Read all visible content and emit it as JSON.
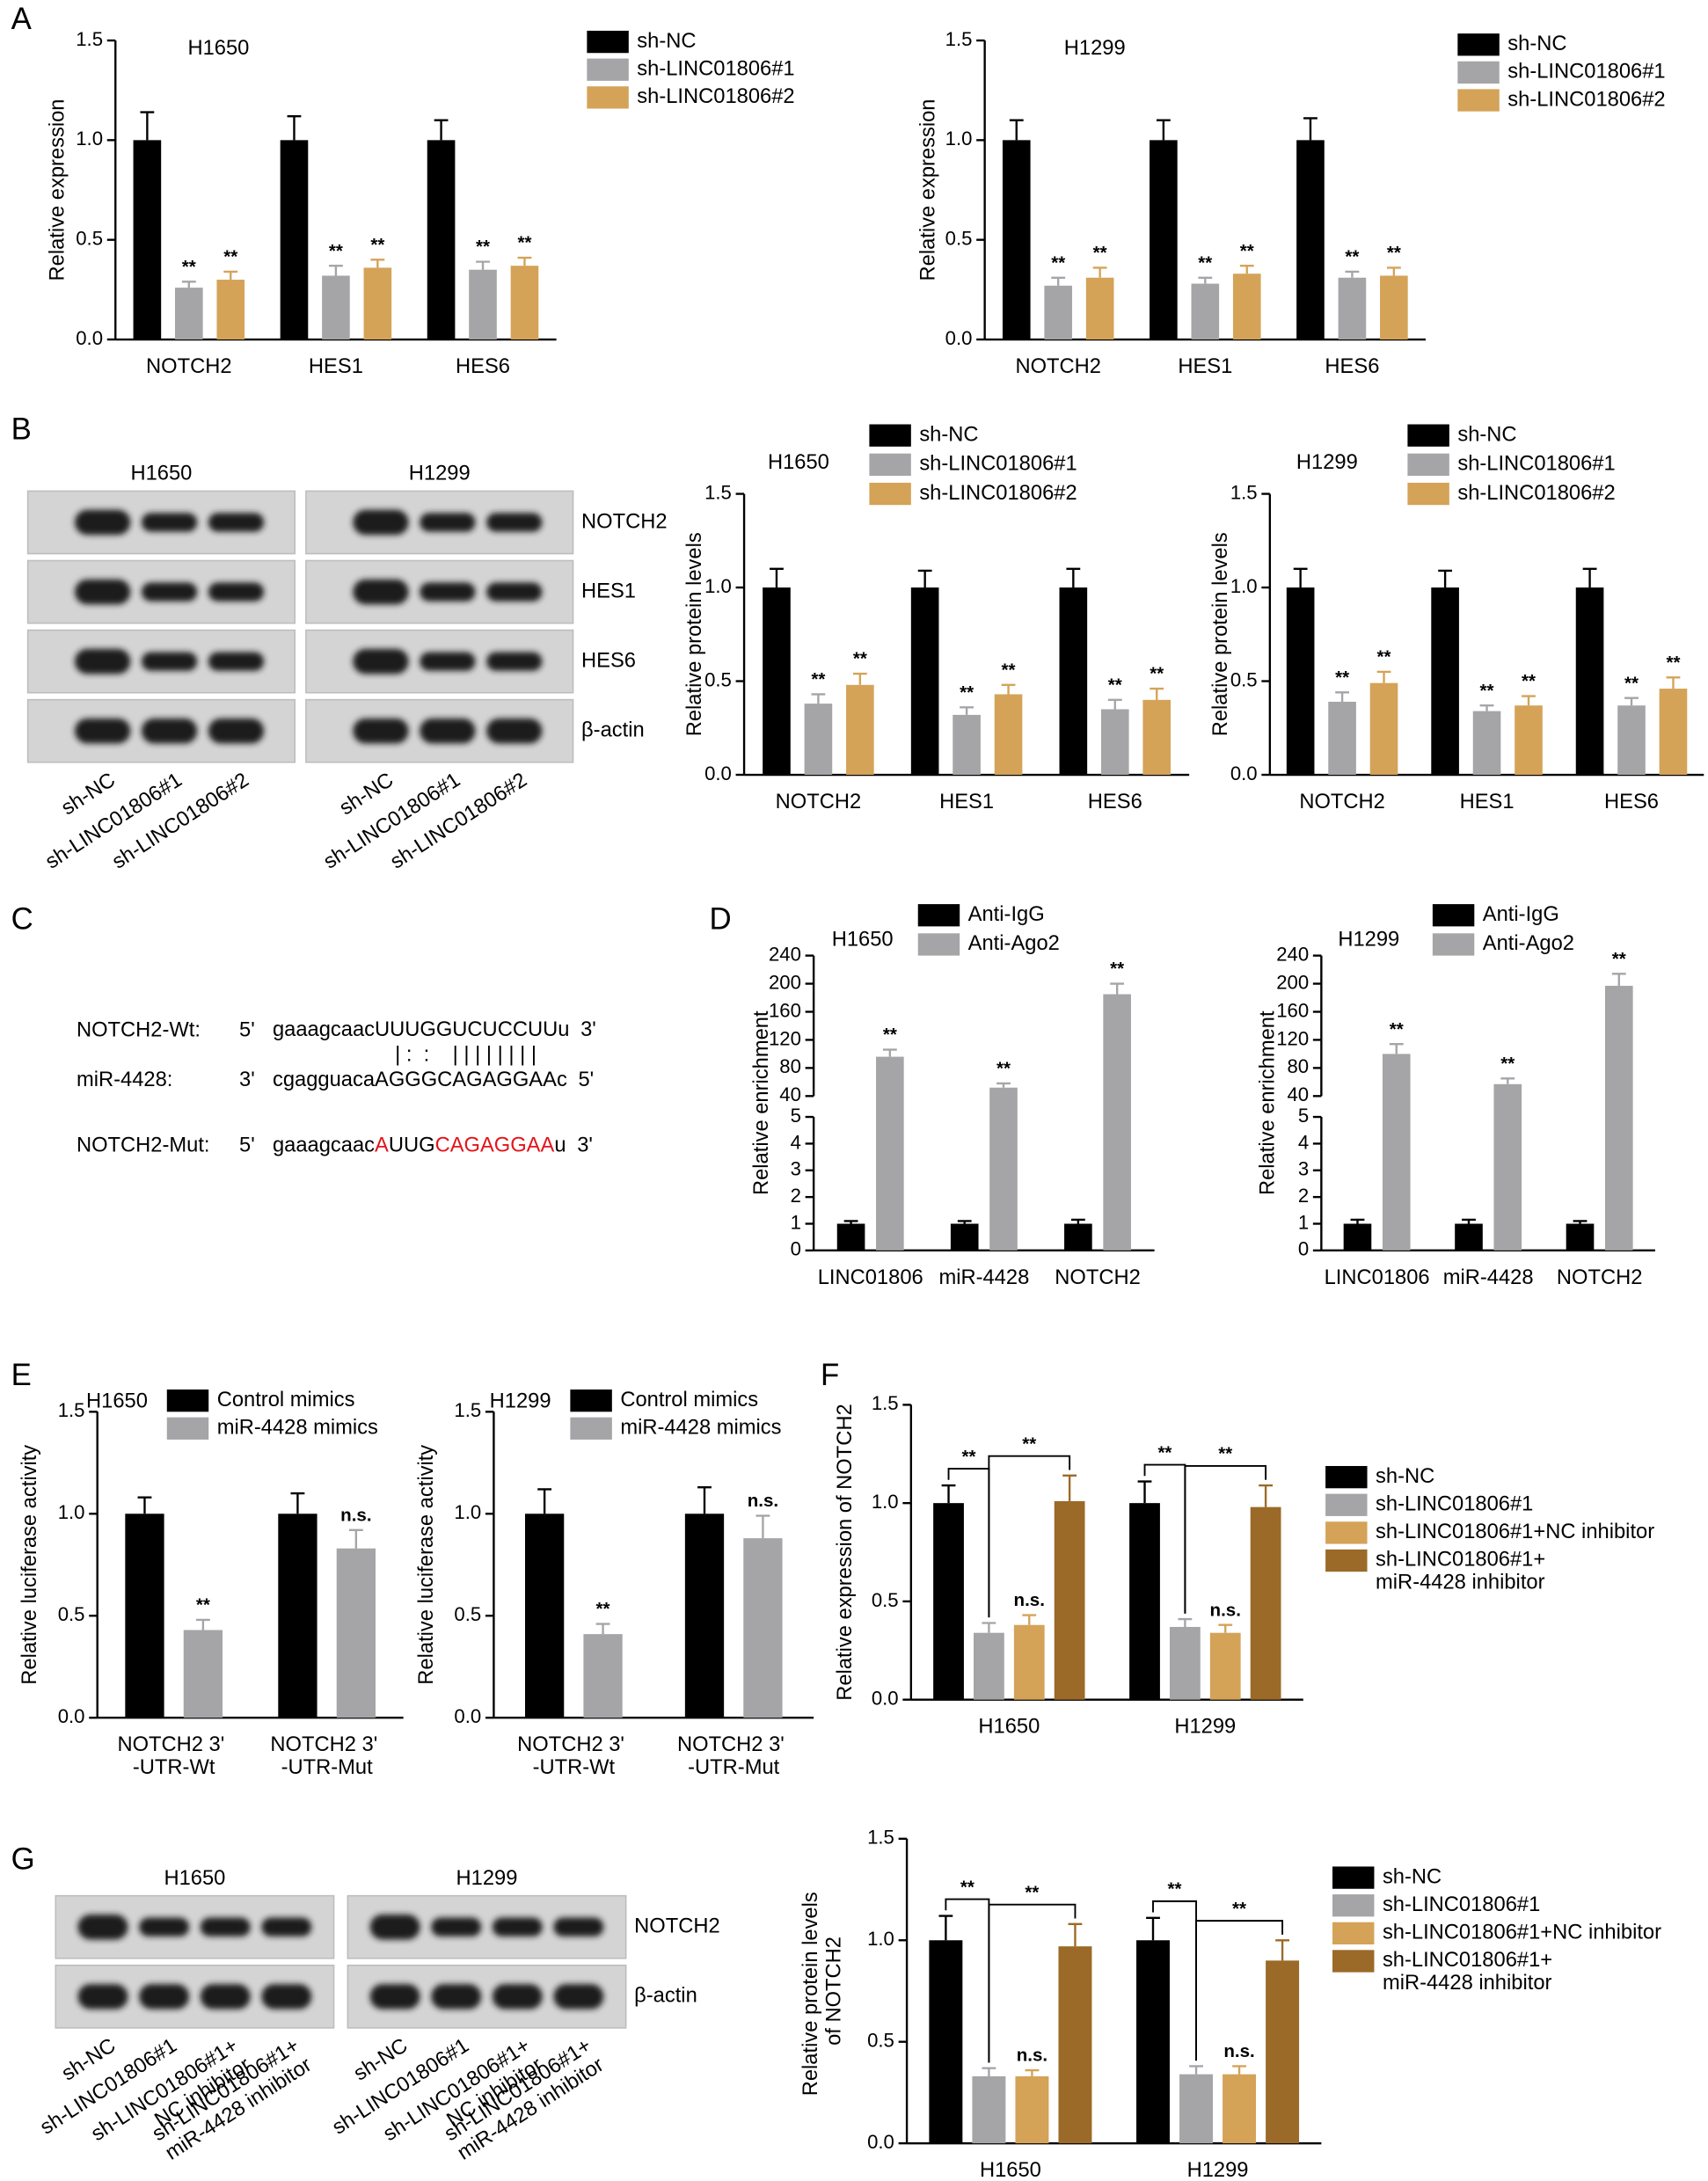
{
  "chart_data": [
    {
      "type": "bar",
      "title": "H1650",
      "ylabel": "Relative expression",
      "categories": [
        "NOTCH2",
        "HES1",
        "HES6"
      ],
      "series": [
        {
          "name": "sh-NC",
          "color": "#000000",
          "values": [
            1,
            1,
            1
          ],
          "errors": [
            0.14,
            0.12,
            0.1
          ]
        },
        {
          "name": "sh-LINC01806#1",
          "color": "#a5a5a8",
          "values": [
            0.26,
            0.32,
            0.35
          ],
          "errors": [
            0.03,
            0.05,
            0.04
          ],
          "annotations": [
            "**",
            "**",
            "**"
          ]
        },
        {
          "name": "sh-LINC01806#2",
          "color": "#d4a358",
          "values": [
            0.3,
            0.36,
            0.37
          ],
          "errors": [
            0.04,
            0.04,
            0.04
          ],
          "annotations": [
            "**",
            "**",
            "**"
          ]
        }
      ],
      "ylim": [
        0,
        1.5
      ],
      "yticks": [
        {
          "value": 0,
          "label": "0.0"
        },
        {
          "value": 0.5,
          "label": "0.5"
        },
        {
          "value": 1,
          "label": "1.0"
        },
        {
          "value": 1.5,
          "label": "1.5"
        }
      ]
    },
    {
      "type": "bar",
      "title": "H1299",
      "ylabel": "Relative expression",
      "categories": [
        "NOTCH2",
        "HES1",
        "HES6"
      ],
      "series": [
        {
          "name": "sh-NC",
          "color": "#000000",
          "values": [
            1,
            1,
            1
          ],
          "errors": [
            0.1,
            0.1,
            0.11
          ]
        },
        {
          "name": "sh-LINC01806#1",
          "color": "#a5a5a8",
          "values": [
            0.27,
            0.28,
            0.31
          ],
          "errors": [
            0.04,
            0.03,
            0.03
          ],
          "annotations": [
            "**",
            "**",
            "**"
          ]
        },
        {
          "name": "sh-LINC01806#2",
          "color": "#d4a358",
          "values": [
            0.31,
            0.33,
            0.32
          ],
          "errors": [
            0.05,
            0.04,
            0.04
          ],
          "annotations": [
            "**",
            "**",
            "**"
          ]
        }
      ],
      "ylim": [
        0,
        1.5
      ],
      "yticks": [
        {
          "value": 0,
          "label": "0.0"
        },
        {
          "value": 0.5,
          "label": "0.5"
        },
        {
          "value": 1,
          "label": "1.0"
        },
        {
          "value": 1.5,
          "label": "1.5"
        }
      ]
    },
    {
      "type": "bar",
      "title": "H1650",
      "ylabel": "Relative protein levels",
      "categories": [
        "NOTCH2",
        "HES1",
        "HES6"
      ],
      "series": [
        {
          "name": "sh-NC",
          "color": "#000000",
          "values": [
            1,
            1,
            1
          ],
          "errors": [
            0.1,
            0.09,
            0.1
          ]
        },
        {
          "name": "sh-LINC01806#1",
          "color": "#a5a5a8",
          "values": [
            0.38,
            0.32,
            0.35
          ],
          "errors": [
            0.05,
            0.04,
            0.05
          ],
          "annotations": [
            "**",
            "**",
            "**"
          ]
        },
        {
          "name": "sh-LINC01806#2",
          "color": "#d4a358",
          "values": [
            0.48,
            0.43,
            0.4
          ],
          "errors": [
            0.06,
            0.05,
            0.06
          ],
          "annotations": [
            "**",
            "**",
            "**"
          ]
        }
      ],
      "ylim": [
        0,
        1.5
      ],
      "yticks": [
        {
          "value": 0,
          "label": "0.0"
        },
        {
          "value": 0.5,
          "label": "0.5"
        },
        {
          "value": 1,
          "label": "1.0"
        },
        {
          "value": 1.5,
          "label": "1.5"
        }
      ]
    },
    {
      "type": "bar",
      "title": "H1299",
      "ylabel": "Relative protein levels",
      "categories": [
        "NOTCH2",
        "HES1",
        "HES6"
      ],
      "series": [
        {
          "name": "sh-NC",
          "color": "#000000",
          "values": [
            1,
            1,
            1
          ],
          "errors": [
            0.1,
            0.09,
            0.1
          ]
        },
        {
          "name": "sh-LINC01806#1",
          "color": "#a5a5a8",
          "values": [
            0.39,
            0.34,
            0.37
          ],
          "errors": [
            0.05,
            0.03,
            0.04
          ],
          "annotations": [
            "**",
            "**",
            "**"
          ]
        },
        {
          "name": "sh-LINC01806#2",
          "color": "#d4a358",
          "values": [
            0.49,
            0.37,
            0.46
          ],
          "errors": [
            0.06,
            0.05,
            0.06
          ],
          "annotations": [
            "**",
            "**",
            "**"
          ]
        }
      ],
      "ylim": [
        0,
        1.5
      ],
      "yticks": [
        {
          "value": 0,
          "label": "0.0"
        },
        {
          "value": 0.5,
          "label": "0.5"
        },
        {
          "value": 1,
          "label": "1.0"
        },
        {
          "value": 1.5,
          "label": "1.5"
        }
      ]
    },
    {
      "type": "bar",
      "title": "H1650",
      "ylabel": "Relative enrichment",
      "categories": [
        "LINC01806",
        "miR-4428",
        "NOTCH2"
      ],
      "series": [
        {
          "name": "Anti-IgG",
          "color": "#000000",
          "values": [
            1,
            1,
            1
          ],
          "errors": [
            0.1,
            0.1,
            0.15
          ]
        },
        {
          "name": "Anti-Ago2",
          "color": "#a5a5a8",
          "values": [
            96,
            52,
            185
          ],
          "errors": [
            10,
            6,
            15
          ],
          "annotations": [
            "**",
            "**",
            "**"
          ]
        }
      ],
      "ylim": [
        0,
        240
      ],
      "ybreak": [
        5,
        40
      ],
      "yticks": [
        0,
        1,
        2,
        3,
        4,
        5,
        40,
        80,
        120,
        160,
        200,
        240
      ]
    },
    {
      "type": "bar",
      "title": "H1299",
      "ylabel": "Relative enrichment",
      "categories": [
        "LINC01806",
        "miR-4428",
        "NOTCH2"
      ],
      "series": [
        {
          "name": "Anti-IgG",
          "color": "#000000",
          "values": [
            1,
            1,
            1
          ],
          "errors": [
            0.15,
            0.15,
            0.1
          ]
        },
        {
          "name": "Anti-Ago2",
          "color": "#a5a5a8",
          "values": [
            100,
            57,
            197
          ],
          "errors": [
            14,
            8,
            17
          ],
          "annotations": [
            "**",
            "**",
            "**"
          ]
        }
      ],
      "ylim": [
        0,
        240
      ],
      "ybreak": [
        5,
        40
      ],
      "yticks": [
        0,
        1,
        2,
        3,
        4,
        5,
        40,
        80,
        120,
        160,
        200,
        240
      ]
    },
    {
      "type": "bar",
      "title": "H1650",
      "ylabel": "Relative luciferase activity",
      "categories": [
        "NOTCH2 3'\n-UTR-Wt",
        "NOTCH2 3'\n-UTR-Mut"
      ],
      "series": [
        {
          "name": "Control mimics",
          "color": "#000000",
          "values": [
            1,
            1
          ],
          "errors": [
            0.08,
            0.1
          ]
        },
        {
          "name": "miR-4428 mimics",
          "color": "#a5a5a8",
          "values": [
            0.43,
            0.83
          ],
          "errors": [
            0.05,
            0.09
          ],
          "annotations": [
            "**",
            "n.s."
          ]
        }
      ],
      "ylim": [
        0,
        1.5
      ],
      "yticks": [
        {
          "value": 0,
          "label": "0.0"
        },
        {
          "value": 0.5,
          "label": "0.5"
        },
        {
          "value": 1,
          "label": "1.0"
        },
        {
          "value": 1.5,
          "label": "1.5"
        }
      ]
    },
    {
      "type": "bar",
      "title": "H1299",
      "ylabel": "Relative luciferase activity",
      "categories": [
        "NOTCH2 3'\n-UTR-Wt",
        "NOTCH2 3'\n-UTR-Mut"
      ],
      "series": [
        {
          "name": "Control mimics",
          "color": "#000000",
          "values": [
            1,
            1
          ],
          "errors": [
            0.12,
            0.13
          ]
        },
        {
          "name": "miR-4428 mimics",
          "color": "#a5a5a8",
          "values": [
            0.41,
            0.88
          ],
          "errors": [
            0.05,
            0.11
          ],
          "annotations": [
            "**",
            "n.s."
          ]
        }
      ],
      "ylim": [
        0,
        1.5
      ],
      "yticks": [
        {
          "value": 0,
          "label": "0.0"
        },
        {
          "value": 0.5,
          "label": "0.5"
        },
        {
          "value": 1,
          "label": "1.0"
        },
        {
          "value": 1.5,
          "label": "1.5"
        }
      ]
    },
    {
      "type": "bar",
      "ylabel": "Relative expression of NOTCH2",
      "categories": [
        "H1650",
        "H1299"
      ],
      "series": [
        {
          "name": "sh-NC",
          "color": "#000000",
          "values": [
            1,
            1
          ],
          "errors": [
            0.09,
            0.11
          ]
        },
        {
          "name": "sh-LINC01806#1",
          "color": "#a5a5a8",
          "values": [
            0.34,
            0.37
          ],
          "errors": [
            0.05,
            0.04
          ]
        },
        {
          "name": "sh-LINC01806#1+NC inhibitor",
          "color": "#d4a358",
          "values": [
            0.38,
            0.34
          ],
          "errors": [
            0.05,
            0.04
          ],
          "annotations": [
            "n.s.",
            "n.s."
          ]
        },
        {
          "name": "sh-LINC01806#1+\nmiR-4428 inhibitor",
          "color": "#9b6a28",
          "values": [
            1.01,
            0.98
          ],
          "errors": [
            0.13,
            0.11
          ]
        }
      ],
      "brackets": [
        [
          "**",
          "**"
        ],
        [
          "**",
          "**"
        ]
      ],
      "ylim": [
        0,
        1.5
      ],
      "yticks": [
        {
          "value": 0,
          "label": "0.0"
        },
        {
          "value": 0.5,
          "label": "0.5"
        },
        {
          "value": 1,
          "label": "1.0"
        },
        {
          "value": 1.5,
          "label": "1.5"
        }
      ]
    },
    {
      "type": "bar",
      "ylabel": "Relative protein levels\nof NOTCH2",
      "categories": [
        "H1650",
        "H1299"
      ],
      "series": [
        {
          "name": "sh-NC",
          "color": "#000000",
          "values": [
            1,
            1
          ],
          "errors": [
            0.12,
            0.11
          ]
        },
        {
          "name": "sh-LINC01806#1",
          "color": "#a5a5a8",
          "values": [
            0.33,
            0.34
          ],
          "errors": [
            0.04,
            0.04
          ]
        },
        {
          "name": "sh-LINC01806#1+NC inhibitor",
          "color": "#d4a358",
          "values": [
            0.33,
            0.34
          ],
          "errors": [
            0.03,
            0.04
          ],
          "annotations": [
            "n.s.",
            "n.s."
          ]
        },
        {
          "name": "sh-LINC01806#1+\nmiR-4428 inhibitor",
          "color": "#9b6a28",
          "values": [
            0.97,
            0.9
          ],
          "errors": [
            0.11,
            0.1
          ]
        }
      ],
      "brackets": [
        [
          "**",
          "**"
        ],
        [
          "**",
          "**"
        ]
      ],
      "ylim": [
        0,
        1.5
      ],
      "yticks": [
        {
          "value": 0,
          "label": "0.0"
        },
        {
          "value": 0.5,
          "label": "0.5"
        },
        {
          "value": 1,
          "label": "1.0"
        },
        {
          "value": 1.5,
          "label": "1.5"
        }
      ]
    }
  ],
  "panels": [
    "A",
    "B",
    "C",
    "D",
    "E",
    "F",
    "G"
  ],
  "blots": [
    {
      "rows": [
        "NOTCH2",
        "HES1",
        "HES6",
        "β-actin"
      ],
      "groups": [
        {
          "name": "H1650",
          "lanes": [
            [
              "sh-NC"
            ],
            [
              "sh-LINC01806#1"
            ],
            [
              "sh-LINC01806#2"
            ]
          ]
        },
        {
          "name": "H1299",
          "lanes": [
            [
              "sh-NC"
            ],
            [
              "sh-LINC01806#1"
            ],
            [
              "sh-LINC01806#2"
            ]
          ]
        }
      ]
    },
    {
      "rows": [
        "NOTCH2",
        "β-actin"
      ],
      "groups": [
        {
          "name": "H1650",
          "lanes": [
            [
              "sh-NC"
            ],
            [
              "sh-LINC01806#1"
            ],
            [
              "sh-LINC01806#1+",
              "NC inhibitor"
            ],
            [
              "sh-LINC01806#1+",
              "miR-4428 inhibitor"
            ]
          ]
        },
        {
          "name": "H1299",
          "lanes": [
            [
              "sh-NC"
            ],
            [
              "sh-LINC01806#1"
            ],
            [
              "sh-LINC01806#1+",
              "NC inhibitor"
            ],
            [
              "sh-LINC01806#1+",
              "miR-4428 inhibitor"
            ]
          ]
        }
      ]
    }
  ],
  "sequence": {
    "rows": [
      {
        "label": "NOTCH2-Wt:",
        "start": "5'",
        "parts": [
          {
            "text": "gaaagcaac",
            "color": "#000000"
          },
          {
            "text": "UUUGGUCUCCUUu",
            "color": "#000000"
          }
        ],
        "end": "3'"
      },
      {
        "label": "miR-4428:",
        "start": "3'",
        "parts": [
          {
            "text": "cgagguaca",
            "color": "#000000"
          },
          {
            "text": "AGGGCAGAGGAAc",
            "color": "#000000"
          }
        ],
        "end": "5'"
      },
      {
        "label": "NOTCH2-Mut:",
        "start": "5'",
        "parts": [
          {
            "text": "gaaagcaac",
            "color": "#000000"
          },
          {
            "text": "A",
            "color": "#e3141b"
          },
          {
            "text": "UUG",
            "color": "#000000"
          },
          {
            "text": "CAGAGGAA",
            "color": "#e3141b"
          },
          {
            "text": "u",
            "color": "#000000"
          }
        ],
        "end": "3'"
      }
    ],
    "pairing": "| :  :    | | | | | | | |"
  }
}
